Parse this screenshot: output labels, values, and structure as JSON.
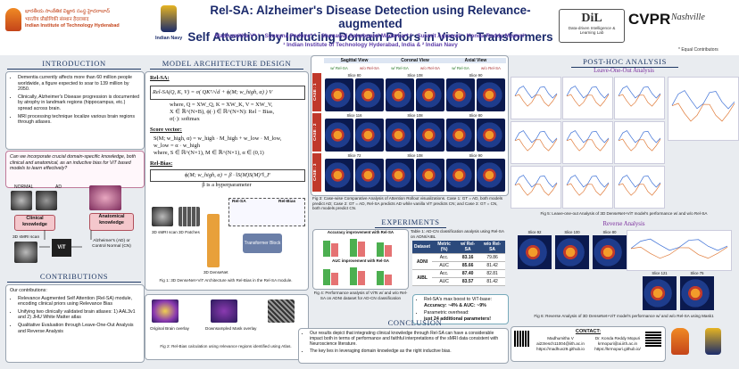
{
  "header": {
    "iith_telugu": "భారతీయ సాంకేతిక విజ్ఞాన సంస్థ హైదరాబాద్",
    "iith_hindi": "भारतीय प्रौद्योगिकी संस्थान हैदराबाद",
    "iith_name": "Indian Institute of Technology Hyderabad",
    "navy": "Indian Navy",
    "title_line1": "Rel-SA: Alzheimer's Disease Detection using Relevance-augmented",
    "title_line2": "Self Attention by Inducing Domain Priors in Vision Transformers",
    "authors": "Madhumitha V*,¹ · Sunayna Padhye*,² · Shanawaj Sahebpatel Madarkar*,² · Susmit Agrawal¹ · Konda Reddy Mopuri¹",
    "affiliations": "¹ Indian Institute of Technology Hyderabad, India & ² Indian Navy",
    "lab_short": "DiL",
    "lab_name": "Data-driven Intelligence & Learning Lab",
    "conference": "CVPR",
    "venue": "Nashville",
    "equal_contrib": "* Equal Contributors"
  },
  "introduction": {
    "heading": "INTRODUCTION",
    "bullets": [
      "Dementia currently affects more than 60 million people worldwide, a figure expected to soar to 139 million by 2050.",
      "Clinically, Alzheimer's Disease progression is documented by atrophy in landmark regions (hippocampus, etc.) spread across brain.",
      "MRI processing technique localize various brain regions through atlases."
    ],
    "question": "Can we incorporate crucial domain-specific knowledge, both clinical and anatomical, as an inductive bias for ViT based models to learn effectively?",
    "diagram": {
      "normal": "NORMAL",
      "ad": "AD",
      "clinical": "Clinical knowledge",
      "anatomical": "Anatomical knowledge",
      "scan": "3D sMRI scan",
      "model": "ViT",
      "output": "Alzheimer's (AD) or Control Normal (CN)"
    }
  },
  "contributions": {
    "heading": "CONTRIBUTIONS",
    "intro": "Our contributions:",
    "items": [
      "Relevance Augmented Self Attention (Rel-SA) module, encoding clinical priors using Relevance Bias",
      "Unifying two clinically validated brain atlases: 1) AAL3v1 and 2) JHU White Matter atlas",
      "Qualitative Evaluation through Leave-One-Out Analysis and Reverse Analysis"
    ]
  },
  "model": {
    "heading": "MODEL ARCHITECTURE DESIGN",
    "relsa_label": "Rel-SA:",
    "relsa_eq": "Rel-SA(Q, K, V) = σ( QKᵀ/√d + ϕ(M; w_high, α) ) V",
    "relsa_where": [
      "where, Q = XW_Q, K = XW_K, V = XW_V,",
      "X ∈ ℝ^(N×B), ϕ(·) ∈ ℝ^(N×N): Rel − Bias,",
      "σ(·): softmax"
    ],
    "score_label": "Score vector:",
    "score_eq": [
      "S(M; w_high, α) = w_high · M_high + w_low · M_low,",
      "w_low = α · w_high",
      "where, S ∈ ℝ^(N×1), M ∈ ℝ^(N×1), α ∈ (0,1)"
    ],
    "relbias_label": "Rel-Bias:",
    "relbias_eq": "ϕ(M; w_high, α) = β · ‖S(M)S(M)ᵀ‖_F",
    "relbias_note": "β is a hyperparameter",
    "fig1_labels": [
      "3D sMRI scan",
      "3D Patches",
      "3D DenseNet",
      "Transformer Block",
      "Rel-SA",
      "Rel-Bias"
    ],
    "fig1_caption": "Fig 1: 3D DenseNet+ViT Architecture with Rel-Bias in the Rel-SA module.",
    "fig2_labels": [
      "Original Brain overlay",
      "Downsampled Mask overlay"
    ],
    "fig2_caption": "Fig 2: Rel-Bias calculation using relevance regions identified using Atlas."
  },
  "attention": {
    "views": [
      "Sagittal View",
      "Coronal View",
      "Axial View"
    ],
    "with": "w/ Rel-SA",
    "without": "w/o Rel-SA",
    "cases": [
      {
        "label": "CASE : 1",
        "slices": [
          "Slice 80",
          "Slice 108",
          "Slice 90"
        ]
      },
      {
        "label": "CASE : 2",
        "slices": [
          "Slice 116",
          "Slice 108",
          "Slice 80"
        ]
      },
      {
        "label": "CASE : 3",
        "slices": [
          "Slice 72",
          "Slice 108",
          "Slice 90"
        ]
      }
    ],
    "caption": "Fig 3: Case-wise Comparative Analysis of Attention Rollout visualizations. Case 1: GT = AD, both models predict AD; Case 2: GT = AD, Rel-SA predicts AD while vanilla ViT predicts CN; and Case 3: GT = CN, both models predict CN."
  },
  "experiments": {
    "heading": "EXPERIMENTS",
    "chart_titles": [
      "Accuracy improvement with Rel-SA",
      "AUC improvement with Rel-SA"
    ],
    "fig4_caption": "Fig 4: Performance analysis of ViTs w/ and w/o Rel-SA on ADNI dataset for AD-CN classification",
    "table": {
      "caption": "Table 1: AD-CN classification analysis using Rel-SA on ADNI/AIBL",
      "headers": [
        "Dataset",
        "Metric (%)",
        "w/ Rel-SA",
        "w/o Rel-SA"
      ],
      "groups": [
        {
          "dataset": "ADNI",
          "rows": [
            [
              "Acc.",
              "83.16",
              "79.86"
            ],
            [
              "AUC",
              "85.66",
              "81.42"
            ]
          ]
        },
        {
          "dataset": "AIBL",
          "rows": [
            [
              "Acc.",
              "87.40",
              "82.81"
            ],
            [
              "AUC",
              "83.57",
              "81.42"
            ]
          ]
        }
      ]
    },
    "highlights": [
      {
        "text": "Rel-SA's max boost to ViT-base:",
        "emphasis": "Accuracy: ~4% & AUC: ~9%"
      },
      {
        "text": "Parametric overhead:",
        "emphasis": "just 24 additional parameters!"
      }
    ]
  },
  "conclusion": {
    "heading": "CONCLUSION",
    "bullets": [
      "Our results depict that integrating clinical knowledge through Rel-SA can have a considerable impact both in terms of performance and faithful interpretations of the sMRI data consistent with Neuroscience literature.",
      "The key lies in leveraging domain knowledge as the right inductive bias."
    ]
  },
  "contact": {
    "heading": "CONTACT:",
    "people": [
      {
        "name": "Madhumitha V",
        "email": "ai23resch11004@iith.ac.in",
        "url": "https://madhuv29.github.io"
      },
      {
        "name": "Dr. Konda Reddy Mopuri",
        "email": "krmopuri@ai.iith.ac.in",
        "url": "https://krmopuri.github.io/"
      }
    ]
  },
  "posthoc": {
    "heading": "POST-HOC ANALYSIS",
    "loo": "Leave-One-Out Analysis",
    "fig5_caption": "Fig 5: Leave-one-out Analysis of 3D DenseNet+ViT model's performance w/ and w/o Rel-SA",
    "reverse": "Reverse Analysis",
    "reverse_slices": [
      "Slice 92",
      "Slice 100",
      "Slice 80",
      "Slice 121",
      "Slice 75"
    ],
    "fig6_caption": "Fig 6: Reverse Analysis of 3D DenseNet+ViT model's performance w/ and w/o Rel-SA using Mask1"
  }
}
